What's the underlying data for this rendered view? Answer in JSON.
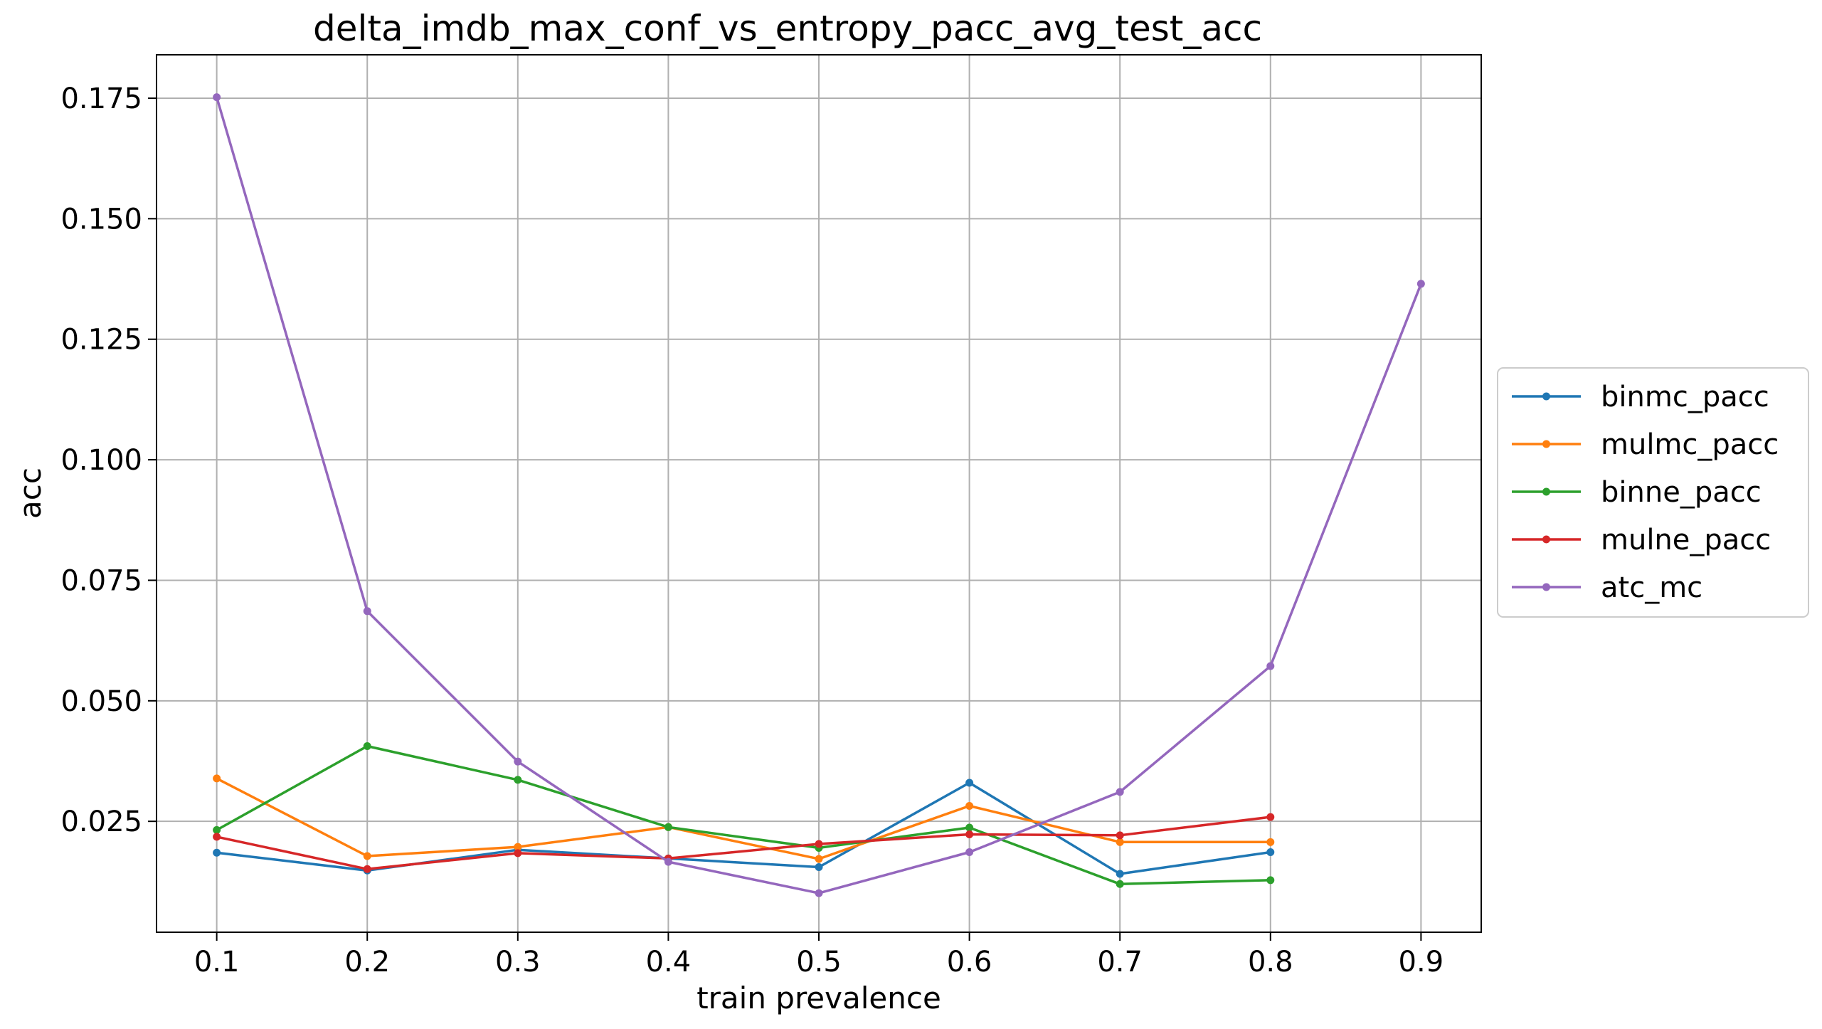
{
  "chart_data": {
    "type": "line",
    "title": "delta_imdb_max_conf_vs_entropy_pacc_avg_test_acc",
    "xlabel": "train prevalence",
    "ylabel": "acc",
    "x_ticks": [
      "0.1",
      "0.2",
      "0.3",
      "0.4",
      "0.5",
      "0.6",
      "0.7",
      "0.8",
      "0.9"
    ],
    "y_ticks": [
      "0.025",
      "0.050",
      "0.075",
      "0.100",
      "0.125",
      "0.150",
      "0.175"
    ],
    "xlim": [
      0.06,
      0.94
    ],
    "ylim": [
      0.002,
      0.184
    ],
    "grid": true,
    "legend_position": "center-right-outside",
    "series": [
      {
        "name": "binmc_pacc",
        "color": "#1f77b4",
        "x": [
          0.1,
          0.2,
          0.3,
          0.4,
          0.5,
          0.6,
          0.7,
          0.8
        ],
        "y": [
          0.0185,
          0.0148,
          0.0191,
          0.0173,
          0.0155,
          0.033,
          0.0141,
          0.0186
        ]
      },
      {
        "name": "mulmc_pacc",
        "color": "#ff7f0e",
        "x": [
          0.1,
          0.2,
          0.3,
          0.4,
          0.5,
          0.6,
          0.7,
          0.8
        ],
        "y": [
          0.0339,
          0.0178,
          0.0197,
          0.0238,
          0.0172,
          0.0282,
          0.0207,
          0.0207
        ]
      },
      {
        "name": "binne_pacc",
        "color": "#2ca02c",
        "x": [
          0.1,
          0.2,
          0.3,
          0.4,
          0.5,
          0.6,
          0.7,
          0.8
        ],
        "y": [
          0.0232,
          0.0406,
          0.0336,
          0.0238,
          0.0195,
          0.0237,
          0.012,
          0.0128
        ]
      },
      {
        "name": "mulne_pacc",
        "color": "#d62728",
        "x": [
          0.1,
          0.2,
          0.3,
          0.4,
          0.5,
          0.6,
          0.7,
          0.8
        ],
        "y": [
          0.0218,
          0.0151,
          0.0184,
          0.0173,
          0.0203,
          0.0223,
          0.0221,
          0.0259
        ]
      },
      {
        "name": "atc_mc",
        "color": "#9467bd",
        "x": [
          0.1,
          0.2,
          0.3,
          0.4,
          0.5,
          0.6,
          0.7,
          0.8,
          0.9
        ],
        "y": [
          0.1752,
          0.0686,
          0.0374,
          0.0166,
          0.0101,
          0.0186,
          0.0311,
          0.0572,
          0.1365
        ]
      }
    ]
  }
}
